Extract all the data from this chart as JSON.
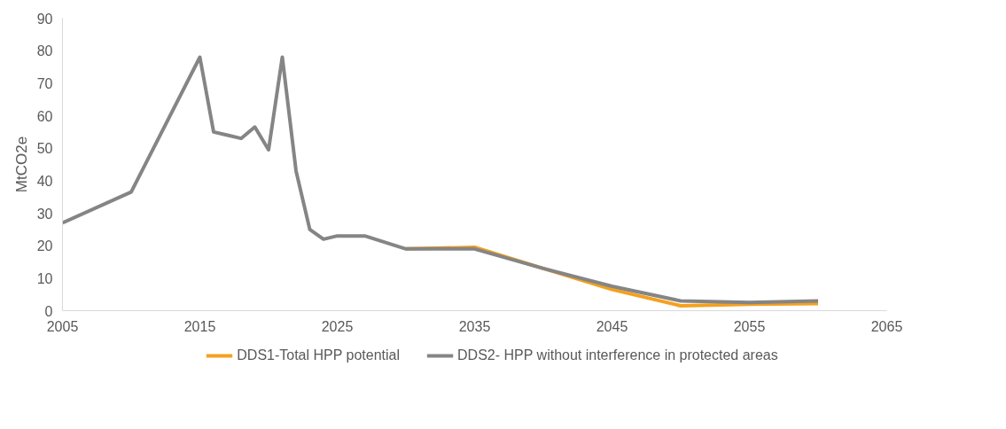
{
  "chart_data": {
    "type": "line",
    "ylabel": "MtCO2e",
    "x": [
      2005,
      2010,
      2015,
      2016,
      2018,
      2019,
      2020,
      2021,
      2022,
      2023,
      2024,
      2025,
      2027,
      2030,
      2035,
      2040,
      2045,
      2050,
      2055,
      2060
    ],
    "series": [
      {
        "name": "DDS1-Total HPP potential",
        "color": "#f4a11f",
        "values": [
          null,
          null,
          null,
          null,
          null,
          null,
          null,
          null,
          null,
          null,
          null,
          null,
          null,
          19,
          19.5,
          13,
          6.5,
          1.5,
          2,
          2.2
        ]
      },
      {
        "name": "DDS2- HPP without interference in protected areas",
        "color": "#858585",
        "values": [
          27,
          36.5,
          78,
          55,
          53,
          56.5,
          49.5,
          78,
          43,
          25,
          22,
          23,
          23,
          19,
          19,
          13,
          7.5,
          3,
          2.5,
          3
        ]
      }
    ],
    "xlim": [
      2005,
      2065
    ],
    "xticks": [
      2005,
      2015,
      2025,
      2035,
      2045,
      2055,
      2065
    ],
    "ylim": [
      0,
      90
    ],
    "yticks": [
      0,
      10,
      20,
      30,
      40,
      50,
      60,
      70,
      80,
      90
    ],
    "grid": false,
    "legend": "bottom",
    "marker": "none",
    "line_style": "solid"
  }
}
